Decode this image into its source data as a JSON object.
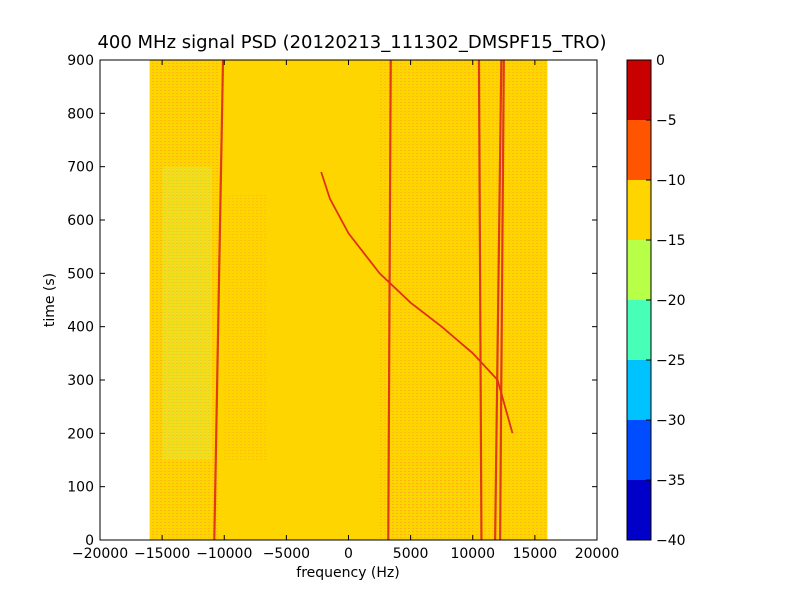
{
  "chart_data": {
    "type": "heatmap",
    "title": "400 MHz signal PSD (20120213_111302_DMSPF15_TRO)",
    "xlabel": "frequency (Hz)",
    "ylabel": "time (s)",
    "xlim": [
      -20000,
      20000
    ],
    "ylim": [
      0,
      900
    ],
    "xticks": [
      -20000,
      -15000,
      -10000,
      -5000,
      0,
      5000,
      10000,
      15000,
      20000
    ],
    "yticks": [
      0,
      100,
      200,
      300,
      400,
      500,
      600,
      700,
      800,
      900
    ],
    "data_extent": {
      "x": [
        -16000,
        16000
      ],
      "y": [
        0,
        900
      ]
    },
    "background_level_range": [
      -15,
      -10
    ],
    "colorbar": {
      "levels": [
        -40,
        -35,
        -30,
        -25,
        -20,
        -15,
        -10,
        -5,
        0
      ],
      "colors": [
        "#0000c8",
        "#004cff",
        "#00c2ff",
        "#47ffb6",
        "#b8ff47",
        "#ffd500",
        "#ff5500",
        "#c80000"
      ],
      "ticks": [
        0,
        -5,
        -10,
        -15,
        -20,
        -25,
        -30,
        -35,
        -40
      ]
    },
    "features": [
      {
        "kind": "vertical_line",
        "freq_start": -10800,
        "freq_end": -10100,
        "level": "-5 to 0"
      },
      {
        "kind": "vertical_line",
        "freq_start": 3200,
        "freq_end": 3400,
        "level": "-5 to 0"
      },
      {
        "kind": "vertical_line",
        "freq_start": 10700,
        "freq_end": 10500,
        "level": "-5 to 0"
      },
      {
        "kind": "vertical_line",
        "freq_start": 11800,
        "freq_end": 12300,
        "level": "-5 to 0"
      },
      {
        "kind": "vertical_line",
        "freq_start": 12200,
        "freq_end": 12500,
        "level": "-5 to 0"
      },
      {
        "kind": "doppler_curve",
        "points": [
          [
            -2200,
            690
          ],
          [
            -1500,
            640
          ],
          [
            0,
            575
          ],
          [
            2500,
            500
          ],
          [
            5000,
            445
          ],
          [
            7500,
            400
          ],
          [
            10000,
            350
          ],
          [
            12000,
            300
          ],
          [
            13200,
            200
          ]
        ],
        "level": "-5 to 0"
      }
    ]
  }
}
